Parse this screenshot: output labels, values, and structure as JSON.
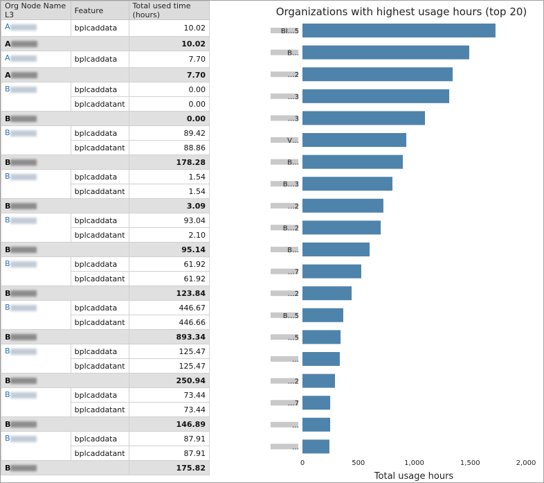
{
  "table": {
    "headers": [
      "Org Node Name L3",
      "Feature",
      "Total used time (hours)"
    ],
    "rows": [
      {
        "org": "A",
        "feature": "bplcaddata",
        "value": "10.02",
        "total": false,
        "span": 1
      },
      {
        "org": "A",
        "feature": "",
        "value": "10.02",
        "total": true
      },
      {
        "org": "A",
        "feature": "bplcaddata",
        "value": "7.70",
        "total": false,
        "span": 1
      },
      {
        "org": "A",
        "feature": "",
        "value": "7.70",
        "total": true
      },
      {
        "org": "B",
        "feature": "bplcaddata",
        "value": "0.00",
        "total": false,
        "span": 2
      },
      {
        "feature": "bplcaddatant",
        "value": "0.00",
        "total": false
      },
      {
        "org": "B",
        "feature": "",
        "value": "0.00",
        "total": true
      },
      {
        "org": "B",
        "feature": "bplcaddata",
        "value": "89.42",
        "total": false,
        "span": 2
      },
      {
        "feature": "bplcaddatant",
        "value": "88.86",
        "total": false
      },
      {
        "org": "B",
        "feature": "",
        "value": "178.28",
        "total": true
      },
      {
        "org": "B",
        "feature": "bplcaddata",
        "value": "1.54",
        "total": false,
        "span": 2
      },
      {
        "feature": "bplcaddatant",
        "value": "1.54",
        "total": false
      },
      {
        "org": "B",
        "feature": "",
        "value": "3.09",
        "total": true
      },
      {
        "org": "B",
        "feature": "bplcaddata",
        "value": "93.04",
        "total": false,
        "span": 2
      },
      {
        "feature": "bplcaddatant",
        "value": "2.10",
        "total": false
      },
      {
        "org": "B",
        "feature": "",
        "value": "95.14",
        "total": true
      },
      {
        "org": "B",
        "feature": "bplcaddata",
        "value": "61.92",
        "total": false,
        "span": 2
      },
      {
        "feature": "bplcaddatant",
        "value": "61.92",
        "total": false
      },
      {
        "org": "B",
        "feature": "",
        "value": "123.84",
        "total": true
      },
      {
        "org": "B",
        "feature": "bplcaddata",
        "value": "446.67",
        "total": false,
        "span": 2
      },
      {
        "feature": "bplcaddatant",
        "value": "446.66",
        "total": false
      },
      {
        "org": "B",
        "feature": "",
        "value": "893.34",
        "total": true
      },
      {
        "org": "B",
        "feature": "bplcaddata",
        "value": "125.47",
        "total": false,
        "span": 2
      },
      {
        "feature": "bplcaddatant",
        "value": "125.47",
        "total": false
      },
      {
        "org": "B",
        "feature": "",
        "value": "250.94",
        "total": true
      },
      {
        "org": "B",
        "feature": "bplcaddata",
        "value": "73.44",
        "total": false,
        "span": 2
      },
      {
        "feature": "bplcaddatant",
        "value": "73.44",
        "total": false
      },
      {
        "org": "B",
        "feature": "",
        "value": "146.89",
        "total": true
      },
      {
        "org": "B",
        "feature": "bplcaddata",
        "value": "87.91",
        "total": false,
        "span": 2
      },
      {
        "feature": "bplcaddatant",
        "value": "87.91",
        "total": false
      },
      {
        "org": "B",
        "feature": "",
        "value": "175.82",
        "total": true
      }
    ]
  },
  "chart_data": {
    "type": "bar",
    "orientation": "horizontal",
    "title": "Organizations with highest usage hours (top 20)",
    "xlabel": "Total usage hours",
    "ylabel": "",
    "xlim": [
      0,
      2000
    ],
    "xticks": [
      "0",
      "500",
      "1,000",
      "1,500",
      "2,000"
    ],
    "xtick_values": [
      0,
      500,
      1000,
      1500,
      2000
    ],
    "categories": [
      "BI…5",
      "B…",
      "…2",
      "…3",
      "…3",
      "V…",
      "B…",
      "B…3",
      "…2",
      "B…2",
      "B…",
      "…7",
      "…2",
      "B…5",
      "…5",
      "…",
      "…2",
      "…7",
      "…",
      "…"
    ],
    "values": [
      1727,
      1492,
      1344,
      1313,
      1096,
      929,
      898,
      805,
      724,
      700,
      601,
      526,
      440,
      365,
      341,
      334,
      291,
      248,
      248,
      241
    ],
    "bar_color": "#4e83ab",
    "grid": false
  }
}
